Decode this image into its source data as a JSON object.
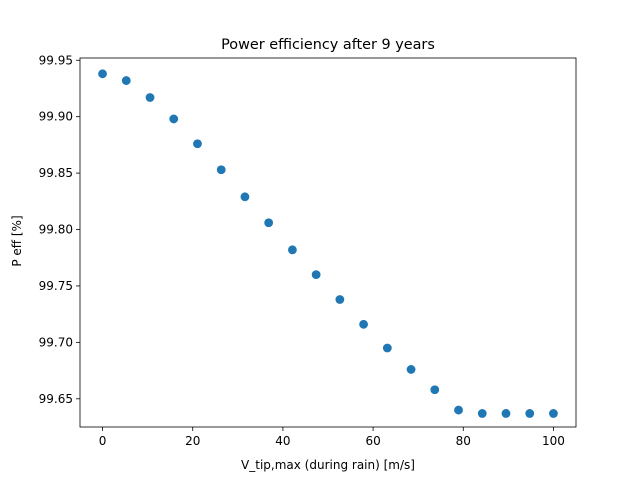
{
  "chart_data": {
    "type": "scatter",
    "title": "Power efficiency after 9 years",
    "xlabel": "V_tip,max (during rain) [m/s]",
    "ylabel": "P eff [%]",
    "xlim": [
      -5,
      105
    ],
    "ylim": [
      99.625,
      99.952
    ],
    "xticks": [
      0,
      20,
      40,
      60,
      80,
      100
    ],
    "yticks": [
      99.65,
      99.7,
      99.75,
      99.8,
      99.85,
      99.9,
      99.95
    ],
    "xtick_labels": [
      "0",
      "20",
      "40",
      "60",
      "80",
      "100"
    ],
    "ytick_labels": [
      "99.65",
      "99.70",
      "99.75",
      "99.80",
      "99.85",
      "99.90",
      "99.95"
    ],
    "grid": false,
    "marker_color": "#1f77b4",
    "series": [
      {
        "x": [
          0,
          5.26,
          10.53,
          15.79,
          21.05,
          26.32,
          31.58,
          36.84,
          42.11,
          47.37,
          52.63,
          57.89,
          63.16,
          68.42,
          73.68,
          78.95,
          84.21,
          89.47,
          94.74,
          100
        ],
        "y": [
          99.938,
          99.932,
          99.917,
          99.898,
          99.876,
          99.853,
          99.829,
          99.806,
          99.782,
          99.76,
          99.738,
          99.716,
          99.695,
          99.676,
          99.658,
          99.64,
          99.637,
          99.637,
          99.637,
          99.637
        ]
      }
    ]
  }
}
